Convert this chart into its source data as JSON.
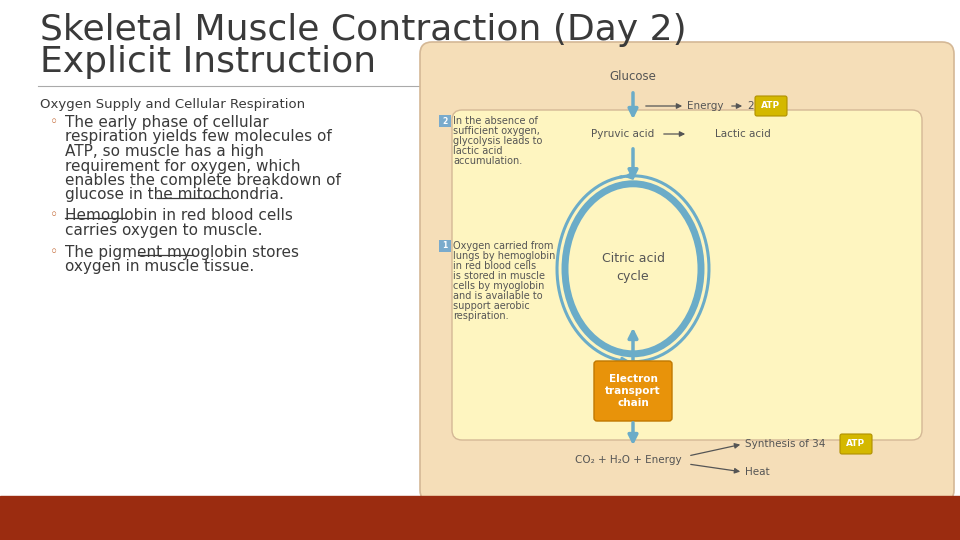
{
  "title_line1": "Skeletal Muscle Contraction (Day 2)",
  "title_line2": "Explicit Instruction",
  "section_heading": "Oxygen Supply and Cellular Respiration",
  "bullet1_lines": [
    "The early phase of cellular",
    "respiration yields few molecules of",
    "ATP, so muscle has a high",
    "requirement for oxygen, which",
    "enables the complete breakdown of",
    "glucose in the mitochondria."
  ],
  "bullet2_lines": [
    "Hemoglobin in red blood cells",
    "carries oxygen to muscle."
  ],
  "bullet3_lines": [
    "The pigment myoglobin stores",
    "oxygen in muscle tissue."
  ],
  "note1_lines": [
    "In the absence of",
    "sufficient oxygen,",
    "glycolysis leads to",
    "lactic acid",
    "accumulation."
  ],
  "note2_lines": [
    "Oxygen carried from",
    "lungs by hemoglobin",
    "in red blood cells",
    "is stored in muscle",
    "cells by myoglobin",
    "and is available to",
    "support aerobic",
    "respiration."
  ],
  "bg_color": "#ffffff",
  "footer_color": "#9b2c10",
  "title_color": "#3a3a3a",
  "text_color": "#3a3a3a",
  "hr_color": "#aaaaaa",
  "outer_fill": "#f5deb8",
  "outer_edge": "#d4b896",
  "inner_fill": "#fef5c0",
  "inner_edge": "#d4b896",
  "blue_arrow": "#6bacc8",
  "etc_fill": "#e8930a",
  "etc_edge": "#c07800",
  "atp_fill": "#d4b800",
  "atp_edge": "#b09000",
  "title_font_size": 26,
  "heading_font_size": 9.5,
  "body_font_size": 11,
  "small_font_size": 7
}
